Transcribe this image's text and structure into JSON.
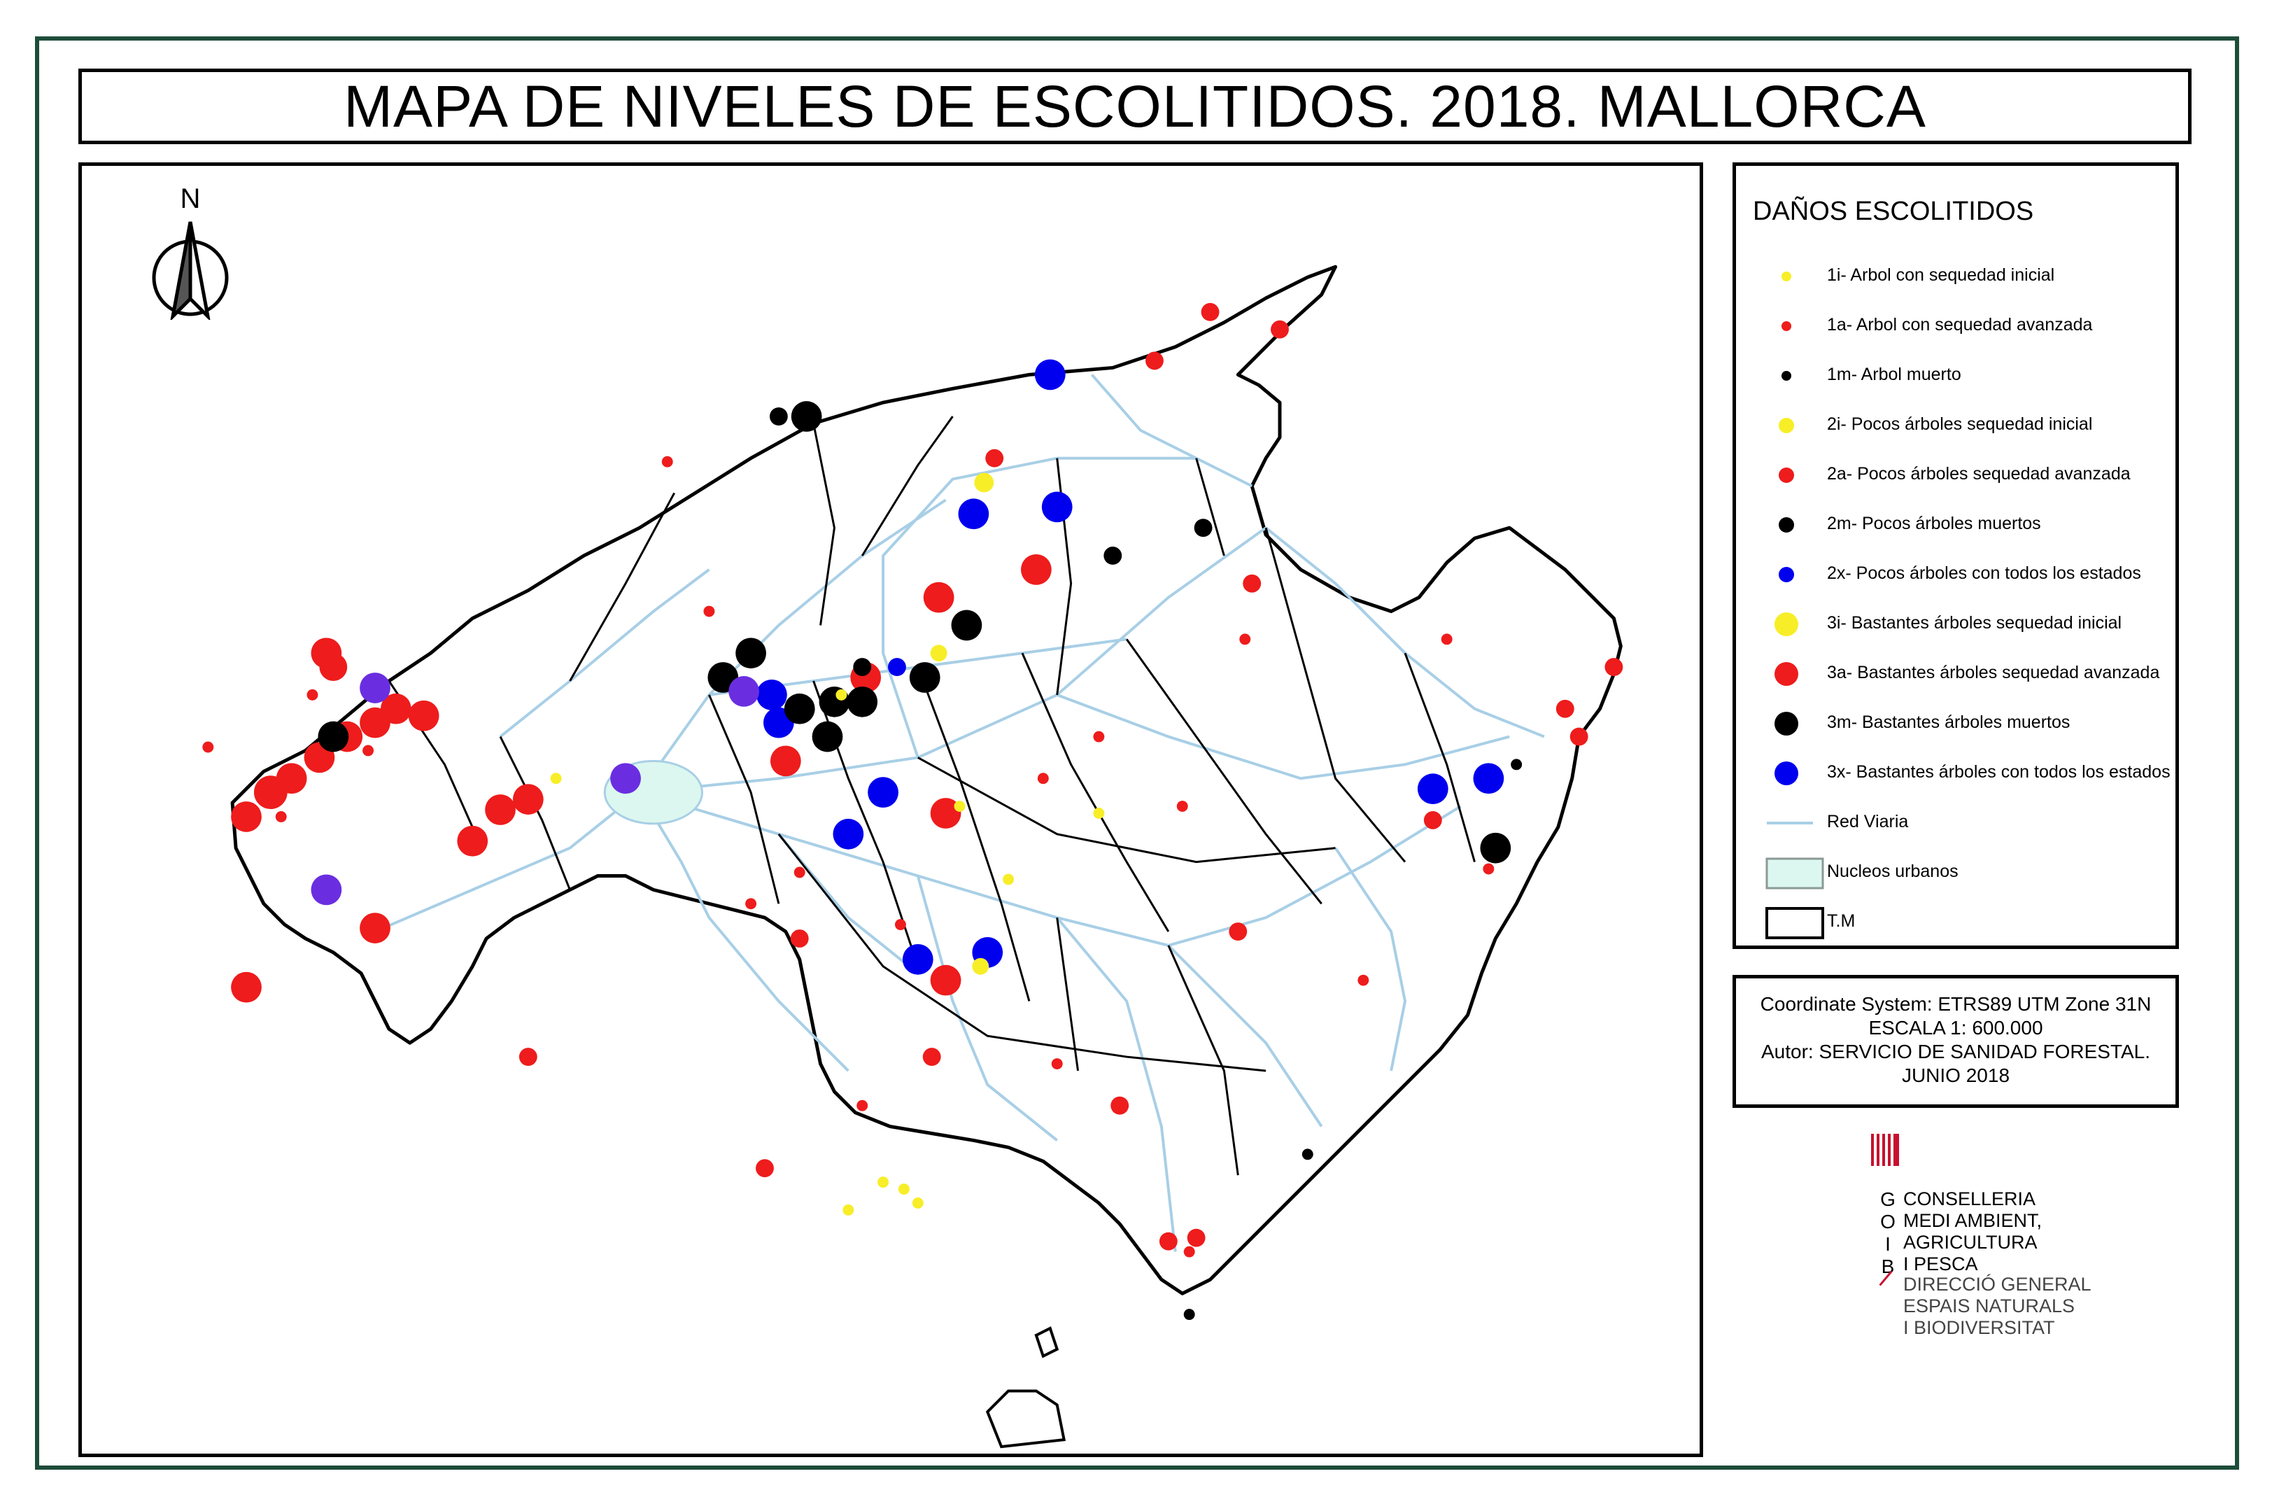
{
  "title": "MAPA DE NIVELES DE ESCOLITIDOS. 2018. MALLORCA",
  "north_label": "N",
  "legend": {
    "title": "DAÑOS ESCOLITIDOS",
    "items": [
      {
        "code": "1i",
        "label": "1i- Arbol con sequedad inicial",
        "kind": "dot",
        "size": "small",
        "color": "#f7ee28"
      },
      {
        "code": "1a",
        "label": "1a- Arbol con sequedad avanzada",
        "kind": "dot",
        "size": "small",
        "color": "#ee1c1c"
      },
      {
        "code": "1m",
        "label": "1m- Arbol muerto",
        "kind": "dot",
        "size": "small",
        "color": "#000000"
      },
      {
        "code": "2i",
        "label": "2i- Pocos árboles sequedad inicial",
        "kind": "dot",
        "size": "medium",
        "color": "#f7ee28"
      },
      {
        "code": "2a",
        "label": "2a- Pocos árboles sequedad avanzada",
        "kind": "dot",
        "size": "medium",
        "color": "#ee1c1c"
      },
      {
        "code": "2m",
        "label": "2m- Pocos árboles muertos",
        "kind": "dot",
        "size": "medium",
        "color": "#000000"
      },
      {
        "code": "2x",
        "label": "2x- Pocos árboles con todos los estados",
        "kind": "dot",
        "size": "medium",
        "color": "#0000ee"
      },
      {
        "code": "3i",
        "label": "3i- Bastantes árboles sequedad inicial",
        "kind": "dot",
        "size": "large",
        "color": "#f7ee28"
      },
      {
        "code": "3a",
        "label": "3a- Bastantes árboles sequedad avanzada",
        "kind": "dot",
        "size": "large",
        "color": "#ee1c1c"
      },
      {
        "code": "3m",
        "label": "3m- Bastantes árboles muertos",
        "kind": "dot",
        "size": "large",
        "color": "#000000"
      },
      {
        "code": "3x",
        "label": "3x- Bastantes árboles con todos los estados",
        "kind": "dot",
        "size": "large",
        "color": "#0000ee"
      },
      {
        "code": "road",
        "label": "Red Viaria",
        "kind": "line",
        "color": "#a8cfe6"
      },
      {
        "code": "urban",
        "label": "Nucleos urbanos",
        "kind": "fill",
        "color": "#dcf7ef"
      },
      {
        "code": "tm",
        "label": "T.M",
        "kind": "box",
        "color": "#000000"
      }
    ]
  },
  "info": {
    "line1": "Coordinate System: ETRS89 UTM Zone 31N",
    "line2": "ESCALA  1: 600.000",
    "line3": "Autor: SERVICIO DE SANIDAD FORESTAL.",
    "line4": "JUNIO 2018"
  },
  "logo": {
    "letters": [
      "G",
      "O",
      "I",
      "B"
    ],
    "line1": "CONSELLERIA",
    "line2": "MEDI AMBIENT,",
    "line3": "AGRICULTURA",
    "line4": "I PESCA",
    "line5": "DIRECCIÓ GENERAL",
    "line6": "ESPAIS NATURALS",
    "line7": "I BIODIVERSITAT"
  },
  "colors": {
    "frame": "#1e4d3a",
    "roads": "#a8cfe6",
    "inicial": "#f7ee28",
    "avanzada": "#ee1c1c",
    "muerto": "#000000",
    "todos": "#0000ee",
    "purple": "#6a2ee0"
  }
}
